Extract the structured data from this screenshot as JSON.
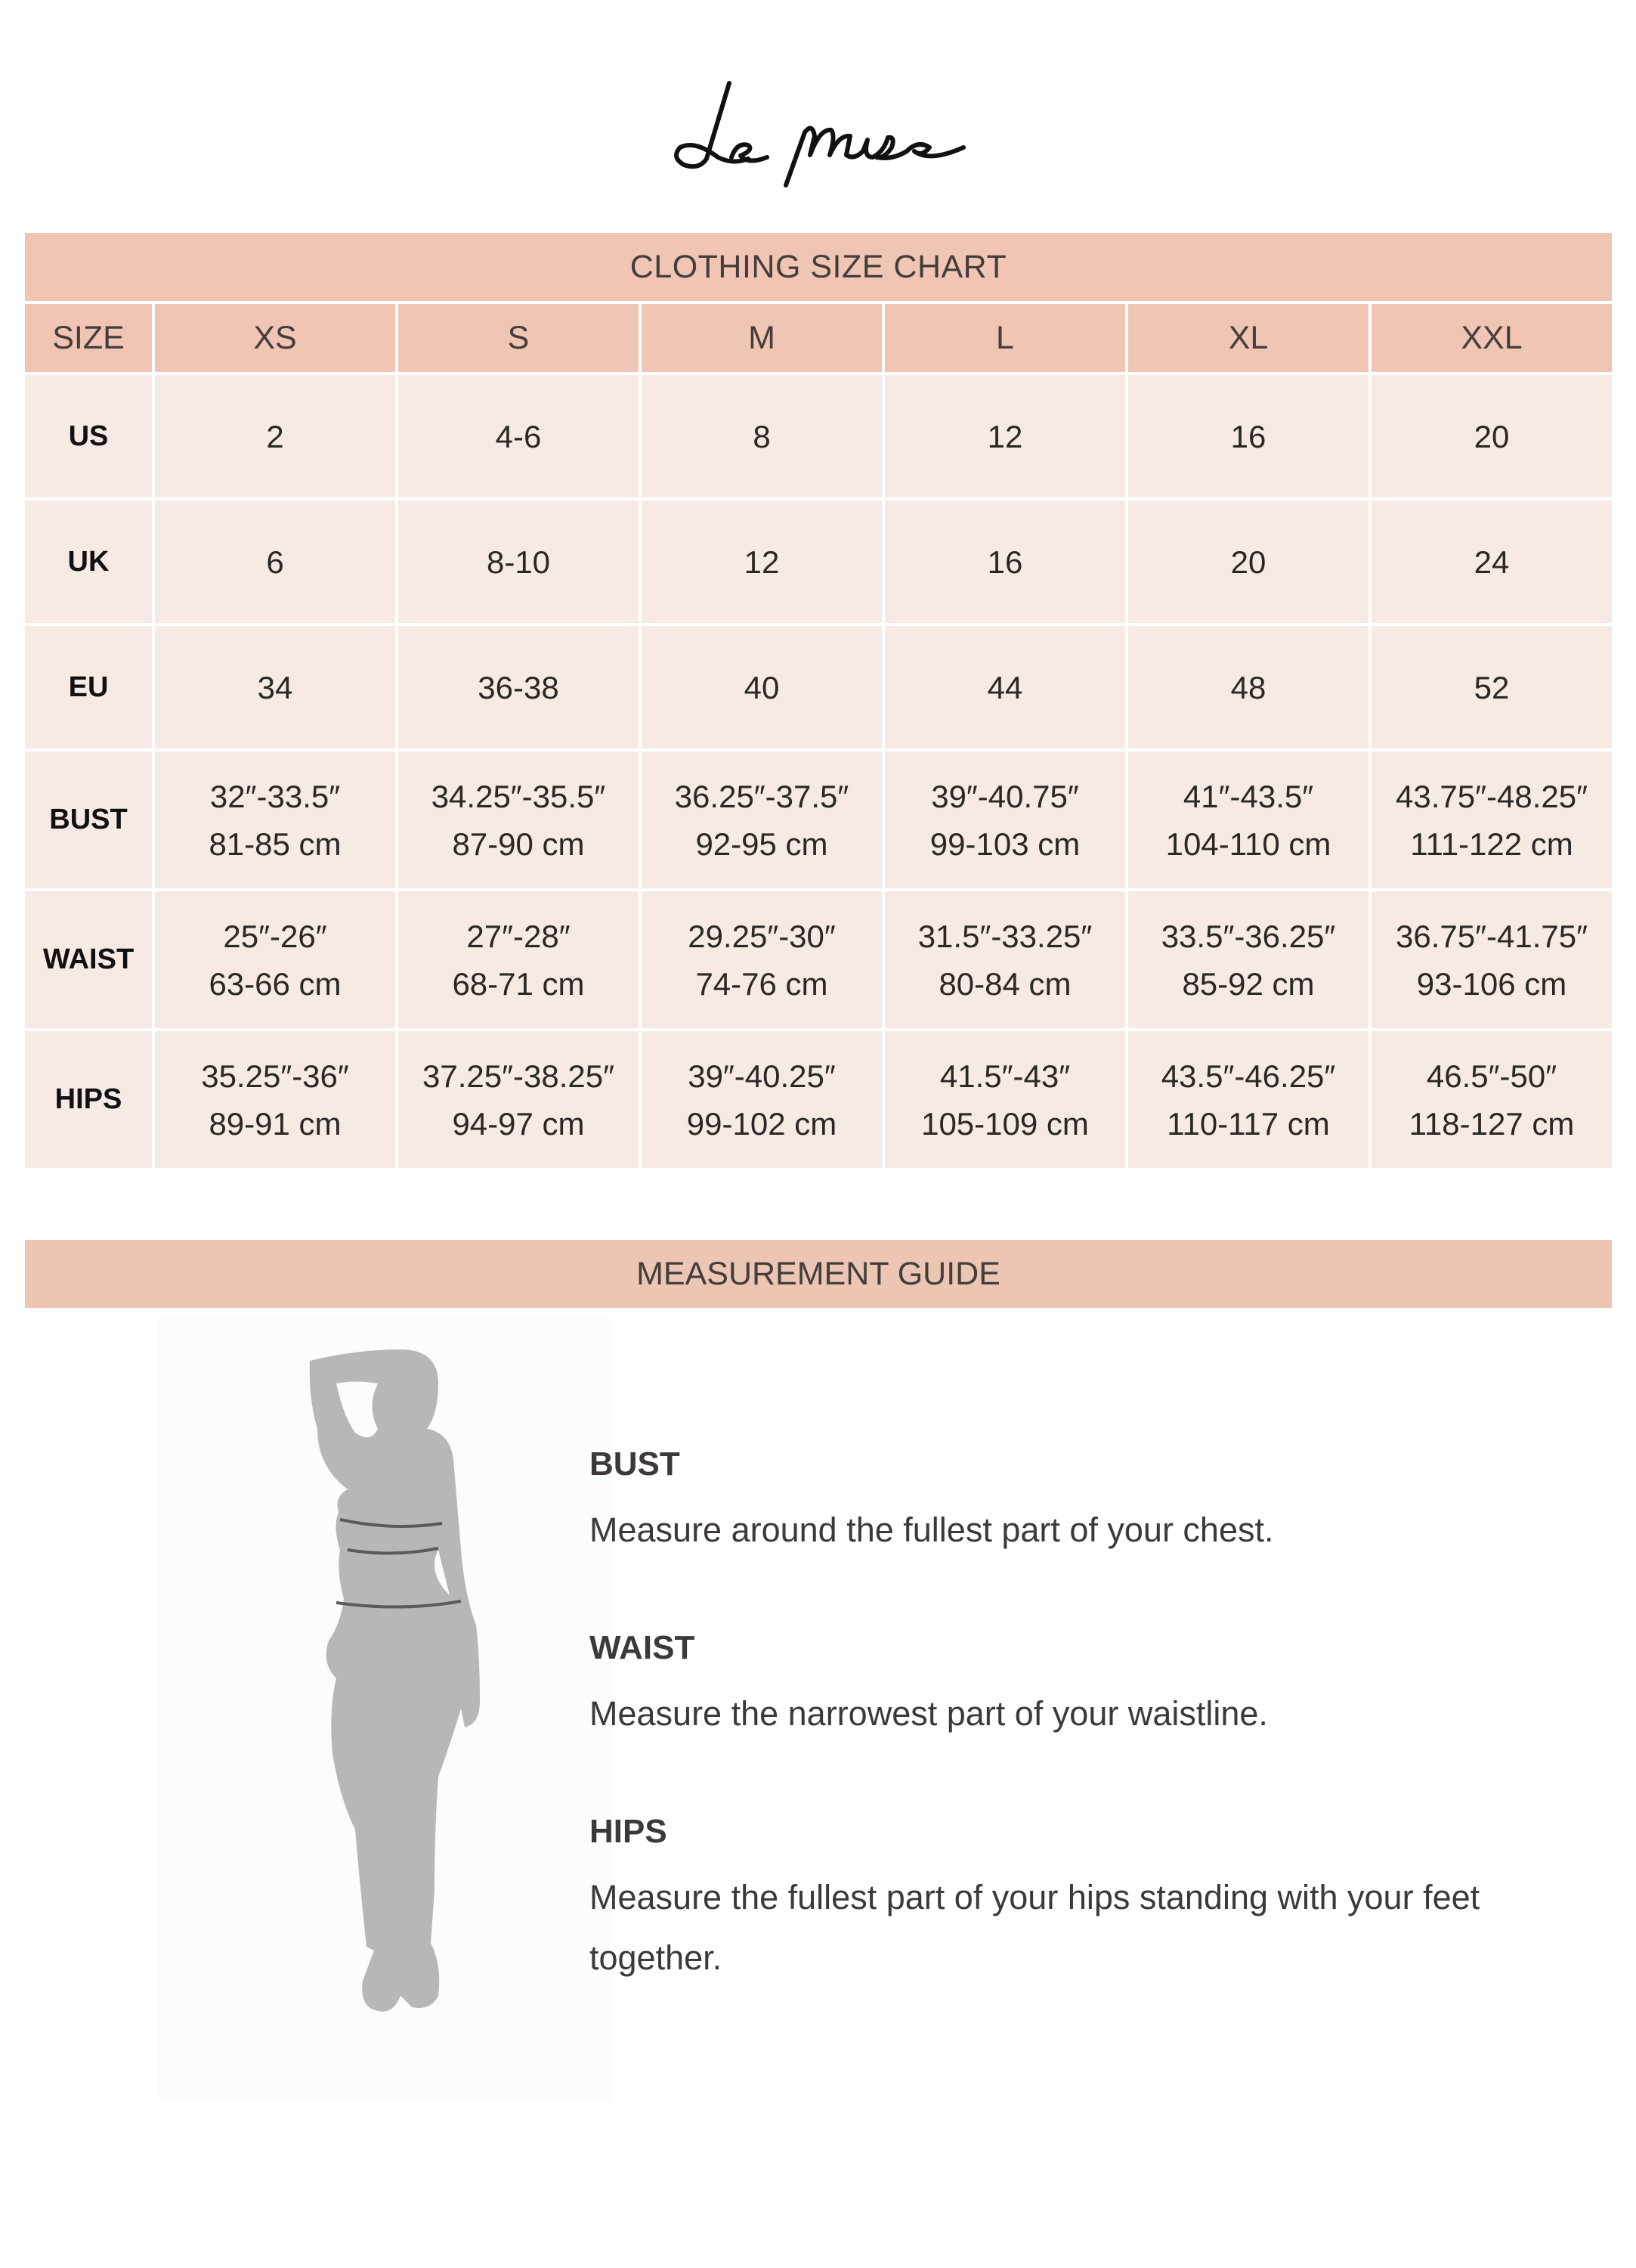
{
  "brand": {
    "logo_text": "Le muse"
  },
  "size_chart": {
    "title": "CLOTHING SIZE CHART",
    "header": [
      "SIZE",
      "XS",
      "S",
      "M",
      "L",
      "XL",
      "XXL"
    ],
    "rows": [
      {
        "label": "US",
        "values": [
          [
            "2"
          ],
          [
            "4-6"
          ],
          [
            "8"
          ],
          [
            "12"
          ],
          [
            "16"
          ],
          [
            "20"
          ]
        ]
      },
      {
        "label": "UK",
        "values": [
          [
            "6"
          ],
          [
            "8-10"
          ],
          [
            "12"
          ],
          [
            "16"
          ],
          [
            "20"
          ],
          [
            "24"
          ]
        ]
      },
      {
        "label": "EU",
        "values": [
          [
            "34"
          ],
          [
            "36-38"
          ],
          [
            "40"
          ],
          [
            "44"
          ],
          [
            "48"
          ],
          [
            "52"
          ]
        ]
      },
      {
        "label": "BUST",
        "values": [
          [
            "32″-33.5″",
            "81-85 cm"
          ],
          [
            "34.25″-35.5″",
            "87-90 cm"
          ],
          [
            "36.25″-37.5″",
            "92-95 cm"
          ],
          [
            "39″-40.75″",
            "99-103 cm"
          ],
          [
            "41″-43.5″",
            "104-110 cm"
          ],
          [
            "43.75″-48.25″",
            "111-122 cm"
          ]
        ]
      },
      {
        "label": "WAIST",
        "values": [
          [
            "25″-26″",
            "63-66 cm"
          ],
          [
            "27″-28″",
            "68-71 cm"
          ],
          [
            "29.25″-30″",
            "74-76 cm"
          ],
          [
            "31.5″-33.25″",
            "80-84 cm"
          ],
          [
            "33.5″-36.25″",
            "85-92 cm"
          ],
          [
            "36.75″-41.75″",
            "93-106 cm"
          ]
        ]
      },
      {
        "label": "HIPS",
        "values": [
          [
            "35.25″-36″",
            "89-91 cm"
          ],
          [
            "37.25″-38.25″",
            "94-97 cm"
          ],
          [
            "39″-40.25″",
            "99-102 cm"
          ],
          [
            "41.5″-43″",
            "105-109 cm"
          ],
          [
            "43.5″-46.25″",
            "110-117 cm"
          ],
          [
            "46.5″-50″",
            "118-127 cm"
          ]
        ]
      }
    ]
  },
  "guide": {
    "title": "MEASUREMENT GUIDE",
    "items": [
      {
        "heading": "BUST",
        "text": "Measure around the fullest part of your chest."
      },
      {
        "heading": "WAIST",
        "text": "Measure the narrowest part of your waistline."
      },
      {
        "heading": "HIPS",
        "text": "Measure the fullest part of your hips standing with your feet together."
      }
    ]
  },
  "colors": {
    "header": "#f1c5b3",
    "cell": "#f7eae5",
    "text": "#3d3938",
    "silhouette": "#b7b7b7"
  }
}
